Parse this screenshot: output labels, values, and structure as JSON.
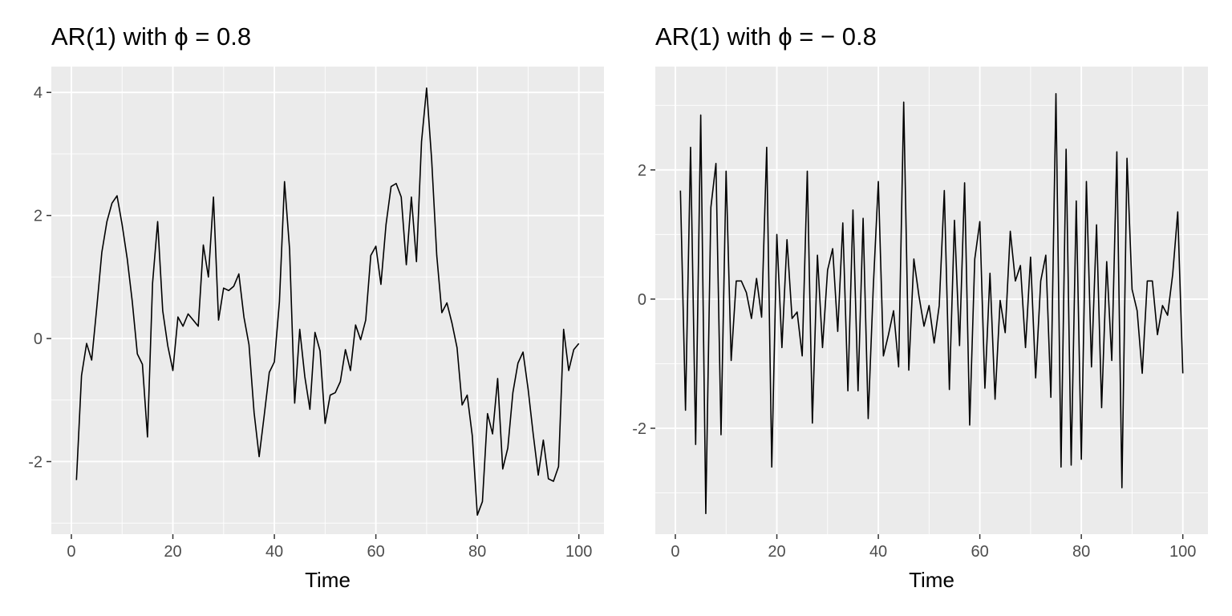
{
  "chart_data": [
    {
      "type": "line",
      "title": "AR(1) with  ϕ = 0.8",
      "xlabel": "Time",
      "ylabel": "",
      "xlim": [
        -3.95,
        104.95
      ],
      "ylim": [
        -3.18,
        4.42
      ],
      "xticks": [
        0,
        20,
        40,
        60,
        80,
        100
      ],
      "xtick_labels": [
        "0",
        "20",
        "40",
        "60",
        "80",
        "100"
      ],
      "yticks": [
        -2,
        0,
        2,
        4
      ],
      "ytick_labels": [
        "-2",
        "0",
        "2",
        "4"
      ],
      "grid": true,
      "line_color": "#000000",
      "series": [
        {
          "x": [
            1,
            2,
            3,
            4,
            5,
            6,
            7,
            8,
            9,
            10,
            11,
            12,
            13,
            14,
            15,
            16,
            17,
            18,
            19,
            20,
            21,
            22,
            23,
            24,
            25,
            26,
            27,
            28,
            29,
            30,
            31,
            32,
            33,
            34,
            35,
            36,
            37,
            38,
            39,
            40,
            41,
            42,
            43,
            44,
            45,
            46,
            47,
            48,
            49,
            50,
            51,
            52,
            53,
            54,
            55,
            56,
            57,
            58,
            59,
            60,
            61,
            62,
            63,
            64,
            65,
            66,
            67,
            68,
            69,
            70,
            71,
            72,
            73,
            74,
            75,
            76,
            77,
            78,
            79,
            80,
            81,
            82,
            83,
            84,
            85,
            86,
            87,
            88,
            89,
            90,
            91,
            92,
            93,
            94,
            95,
            96,
            97,
            98,
            99,
            100
          ],
          "values": [
            -2.3,
            -0.6,
            -0.08,
            -0.35,
            0.5,
            1.4,
            1.9,
            2.2,
            2.32,
            1.85,
            1.3,
            0.6,
            -0.25,
            -0.42,
            -1.6,
            0.9,
            1.9,
            0.45,
            -0.12,
            -0.52,
            0.35,
            0.2,
            0.4,
            0.3,
            0.2,
            1.52,
            1.0,
            2.3,
            0.3,
            0.82,
            0.78,
            0.85,
            1.05,
            0.35,
            -0.1,
            -1.2,
            -1.92,
            -1.25,
            -0.55,
            -0.38,
            0.6,
            2.55,
            1.45,
            -1.05,
            0.15,
            -0.62,
            -1.15,
            0.1,
            -0.2,
            -1.38,
            -0.92,
            -0.88,
            -0.7,
            -0.18,
            -0.52,
            0.22,
            -0.02,
            0.3,
            1.35,
            1.5,
            0.88,
            1.85,
            2.47,
            2.52,
            2.3,
            1.2,
            2.3,
            1.25,
            3.2,
            4.07,
            2.9,
            1.35,
            0.42,
            0.58,
            0.25,
            -0.15,
            -1.08,
            -0.92,
            -1.58,
            -2.87,
            -2.65,
            -1.22,
            -1.55,
            -0.65,
            -2.12,
            -1.78,
            -0.88,
            -0.4,
            -0.22,
            -0.82,
            -1.55,
            -2.22,
            -1.65,
            -2.28,
            -2.32,
            -2.08,
            0.15,
            -0.52,
            -0.18,
            -0.08
          ]
        }
      ]
    },
    {
      "type": "line",
      "title": "AR(1) with  ϕ = − 0.8",
      "xlabel": "Time",
      "ylabel": "",
      "xlim": [
        -3.95,
        104.95
      ],
      "ylim": [
        -3.64,
        3.6
      ],
      "xticks": [
        0,
        20,
        40,
        60,
        80,
        100
      ],
      "xtick_labels": [
        "0",
        "20",
        "40",
        "60",
        "80",
        "100"
      ],
      "yticks": [
        -2,
        0,
        2
      ],
      "ytick_labels": [
        "-2",
        "0",
        "2"
      ],
      "grid": true,
      "line_color": "#000000",
      "series": [
        {
          "x": [
            1,
            2,
            3,
            4,
            5,
            6,
            7,
            8,
            9,
            10,
            11,
            12,
            13,
            14,
            15,
            16,
            17,
            18,
            19,
            20,
            21,
            22,
            23,
            24,
            25,
            26,
            27,
            28,
            29,
            30,
            31,
            32,
            33,
            34,
            35,
            36,
            37,
            38,
            39,
            40,
            41,
            42,
            43,
            44,
            45,
            46,
            47,
            48,
            49,
            50,
            51,
            52,
            53,
            54,
            55,
            56,
            57,
            58,
            59,
            60,
            61,
            62,
            63,
            64,
            65,
            66,
            67,
            68,
            69,
            70,
            71,
            72,
            73,
            74,
            75,
            76,
            77,
            78,
            79,
            80,
            81,
            82,
            83,
            84,
            85,
            86,
            87,
            88,
            89,
            90,
            91,
            92,
            93,
            94,
            95,
            96,
            97,
            98,
            99,
            100
          ],
          "values": [
            1.68,
            -1.72,
            2.35,
            -2.25,
            2.85,
            -3.32,
            1.42,
            2.1,
            -2.1,
            1.98,
            -0.95,
            0.28,
            0.28,
            0.1,
            -0.3,
            0.32,
            -0.28,
            2.35,
            -2.6,
            1.0,
            -0.75,
            0.92,
            -0.3,
            -0.2,
            -0.88,
            1.98,
            -1.92,
            0.68,
            -0.75,
            0.45,
            0.78,
            -0.5,
            1.18,
            -1.42,
            1.38,
            -1.42,
            1.25,
            -1.85,
            0.18,
            1.82,
            -0.88,
            -0.55,
            -0.18,
            -1.05,
            3.05,
            -1.1,
            0.62,
            0.05,
            -0.42,
            -0.1,
            -0.68,
            -0.1,
            1.68,
            -1.4,
            1.22,
            -0.72,
            1.8,
            -1.95,
            0.62,
            1.2,
            -1.38,
            0.4,
            -1.55,
            -0.02,
            -0.52,
            1.05,
            0.28,
            0.52,
            -0.75,
            0.65,
            -1.22,
            0.28,
            0.68,
            -1.52,
            3.18,
            -2.6,
            2.32,
            -2.57,
            1.52,
            -2.48,
            1.82,
            -1.05,
            1.15,
            -1.68,
            0.58,
            -0.95,
            2.28,
            -2.92,
            2.18,
            0.15,
            -0.18,
            -1.15,
            0.28,
            0.28,
            -0.55,
            -0.1,
            -0.25,
            0.38,
            1.35,
            -1.15
          ]
        }
      ]
    }
  ]
}
